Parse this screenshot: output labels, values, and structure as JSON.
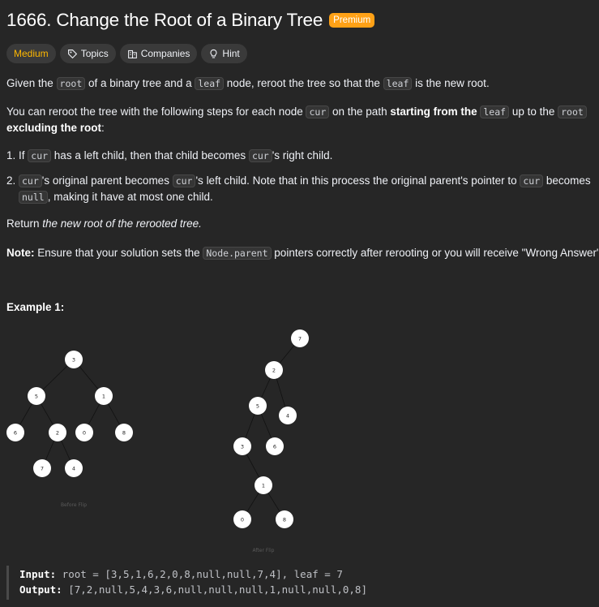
{
  "problem": {
    "title": "1666. Change the Root of a Binary Tree",
    "premium": "Premium"
  },
  "tags": {
    "difficulty": "Medium",
    "topics": "Topics",
    "companies": "Companies",
    "hint": "Hint"
  },
  "desc": {
    "p1_a": "Given the ",
    "p1_code1": "root",
    "p1_b": " of a binary tree and a ",
    "p1_code2": "leaf",
    "p1_c": " node, reroot the tree so that the ",
    "p1_code3": "leaf",
    "p1_d": " is the new root.",
    "p2_a": "You can reroot the tree with the following steps for each node ",
    "p2_code1": "cur",
    "p2_b": " on the path ",
    "p2_bold1": "starting from the",
    "p2_code2": "leaf",
    "p2_c": " up to the ",
    "p2_code3": "root",
    "p2_bold2": "excluding the root",
    "p2_d": ":",
    "s1_num": "1.",
    "s1_a": "If ",
    "s1_code1": "cur",
    "s1_b": " has a left child, then that child becomes ",
    "s1_code2": "cur",
    "s1_c": "'s right child.",
    "s2_num": "2.",
    "s2_code1": "cur",
    "s2_a": "'s original parent becomes ",
    "s2_code2": "cur",
    "s2_b": "'s left child. Note that in this process the original parent's pointer to ",
    "s2_code3": "cur",
    "s2_c": " becomes",
    "s2_code4": "null",
    "s2_d": ", making it have at most one child.",
    "ret_a": "Return ",
    "ret_i": "the new root of the rerooted tree.",
    "note_b": "Note:",
    "note_a": " Ensure that your solution sets the ",
    "note_code": "Node.parent",
    "note_c": " pointers correctly after rerooting or you will receive \"Wrong Answer\"."
  },
  "example": {
    "title": "Example 1:",
    "before_caption": "Before Flip",
    "after_caption": "After Flip",
    "before_nodes": [
      "3",
      "5",
      "1",
      "6",
      "2",
      "0",
      "8",
      "7",
      "4"
    ],
    "after_nodes": [
      "7",
      "2",
      "5",
      "4",
      "3",
      "6",
      "1",
      "0",
      "8"
    ],
    "input_label": "Input:",
    "input_value": " root = [3,5,1,6,2,0,8,null,null,7,4], leaf = 7",
    "output_label": "Output:",
    "output_value": " [7,2,null,5,4,3,6,null,null,null,1,null,null,0,8]"
  }
}
